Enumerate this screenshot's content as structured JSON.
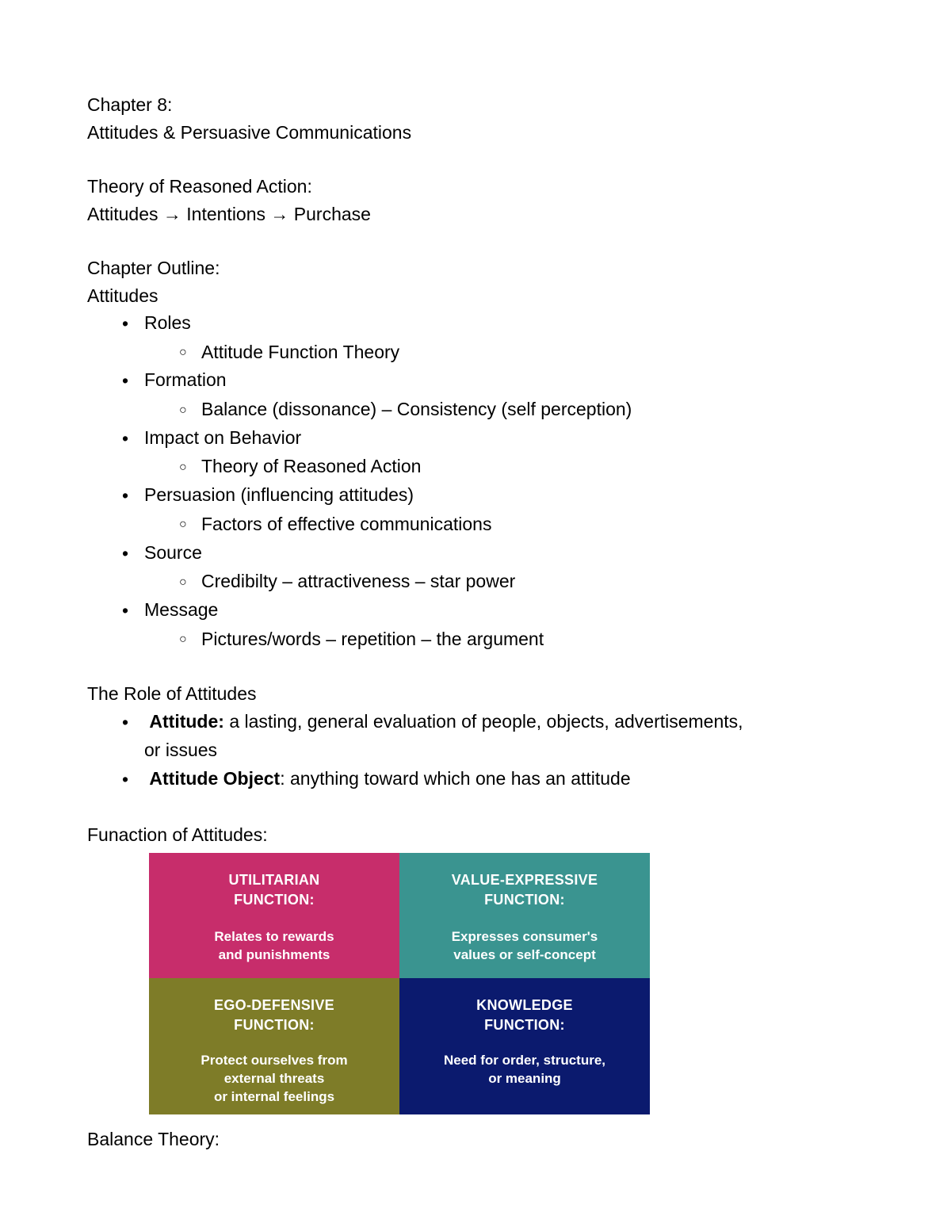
{
  "header": {
    "chapter": "Chapter 8:",
    "title": "Attitudes & Persuasive Communications"
  },
  "theory": {
    "label": "Theory of Reasoned Action:",
    "flow": "Attitudes → Intentions → Purchase"
  },
  "outline": {
    "heading": "Chapter Outline:",
    "subheading": "Attitudes",
    "items": [
      {
        "label": "Roles",
        "sub": [
          "Attitude Function Theory"
        ]
      },
      {
        "label": "Formation",
        "sub": [
          "Balance (dissonance) – Consistency (self perception)"
        ]
      },
      {
        "label": "Impact on Behavior",
        "sub": [
          "Theory of Reasoned Action"
        ]
      },
      {
        "label": "Persuasion (influencing attitudes)",
        "sub": [
          "Factors of effective communications"
        ]
      },
      {
        "label": "Source",
        "sub": [
          "Credibilty – attractiveness – star power"
        ]
      },
      {
        "label": "Message",
        "sub": [
          "Pictures/words – repetition – the argument"
        ]
      }
    ]
  },
  "role": {
    "heading": "The Role of Attitudes",
    "bullets": [
      {
        "bold": "Attitude: ",
        "rest": "a lasting, general evaluation of people, objects, advertisements, or issues"
      },
      {
        "bold": "Attitude Object",
        "rest": ": anything toward which one has an attitude"
      }
    ]
  },
  "functions": {
    "heading": "Funaction of Attitudes:",
    "cells": [
      {
        "title_l1": "UTILITARIAN",
        "title_l2": "FUNCTION:",
        "desc_l1": "Relates to rewards",
        "desc_l2": "and punishments",
        "desc_l3": "",
        "bg": "#c72d6b"
      },
      {
        "title_l1": "VALUE-EXPRESSIVE",
        "title_l2": "FUNCTION:",
        "desc_l1": "Expresses consumer's",
        "desc_l2": "values or self-concept",
        "desc_l3": "",
        "bg": "#3a9490"
      },
      {
        "title_l1": "EGO-DEFENSIVE",
        "title_l2": "FUNCTION:",
        "desc_l1": "Protect ourselves from",
        "desc_l2": "external threats",
        "desc_l3": "or internal feelings",
        "bg": "#7e7c28"
      },
      {
        "title_l1": "KNOWLEDGE",
        "title_l2": "FUNCTION:",
        "desc_l1": "Need for order, structure,",
        "desc_l2": "or meaning",
        "desc_l3": "",
        "bg": "#0b1a6e"
      }
    ]
  },
  "balance": {
    "heading": "Balance Theory:"
  }
}
